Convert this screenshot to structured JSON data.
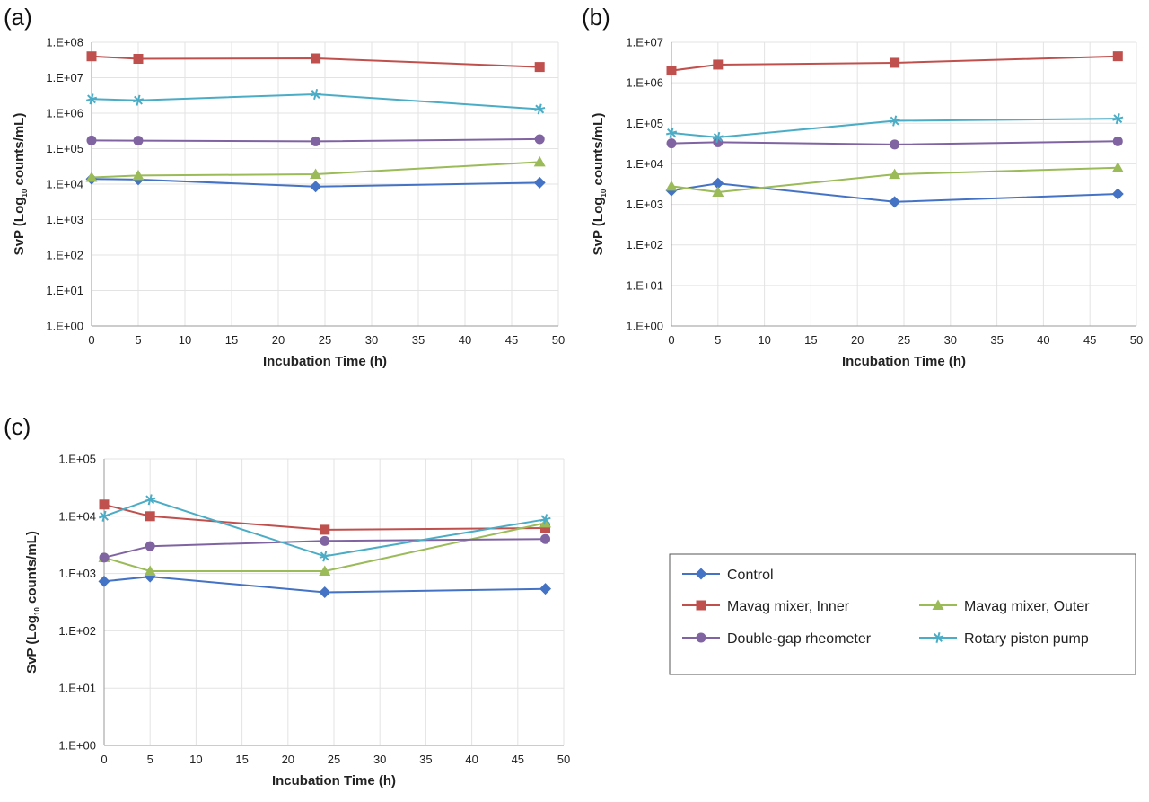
{
  "chart_data": [
    {
      "type": "line",
      "panel_label": "(a)",
      "xlabel": "Incubation Time (h)",
      "ylabel": {
        "prefix": "SvP (Log",
        "sub": "10",
        "suffix": " counts/mL)"
      },
      "xlim": [
        0,
        50
      ],
      "xticks": [
        0,
        5,
        10,
        15,
        20,
        25,
        30,
        35,
        40,
        45,
        50
      ],
      "y_log_decades": [
        0,
        8
      ],
      "yticks": [
        "1.E+00",
        "1.E+01",
        "1.E+02",
        "1.E+03",
        "1.E+04",
        "1.E+05",
        "1.E+06",
        "1.E+07",
        "1.E+08"
      ],
      "x": [
        0,
        5,
        24,
        48
      ],
      "grid": true,
      "series": [
        {
          "name": "Control",
          "values": [
            14000,
            13500,
            8500,
            11000
          ]
        },
        {
          "name": "Mavag mixer, Inner",
          "values": [
            40000000,
            34000000,
            35000000,
            20000000
          ]
        },
        {
          "name": "Mavag mixer, Outer",
          "values": [
            15500,
            17500,
            19000,
            42000
          ]
        },
        {
          "name": "Double-gap rheometer",
          "values": [
            170000,
            168000,
            160000,
            185000
          ]
        },
        {
          "name": "Rotary piston pump",
          "values": [
            2500000,
            2300000,
            3400000,
            1300000
          ]
        }
      ]
    },
    {
      "type": "line",
      "panel_label": "(b)",
      "xlabel": "Incubation Time (h)",
      "ylabel": {
        "prefix": "SvP (Log",
        "sub": "10",
        "suffix": " counts/mL)"
      },
      "xlim": [
        0,
        50
      ],
      "xticks": [
        0,
        5,
        10,
        15,
        20,
        25,
        30,
        35,
        40,
        45,
        50
      ],
      "y_log_decades": [
        0,
        7
      ],
      "yticks": [
        "1.E+00",
        "1.E+01",
        "1.E+02",
        "1.E+03",
        "1.E+04",
        "1.E+05",
        "1.E+06",
        "1.E+07"
      ],
      "x": [
        0,
        5,
        24,
        48
      ],
      "grid": true,
      "series": [
        {
          "name": "Control",
          "values": [
            2200,
            3300,
            1150,
            1800
          ]
        },
        {
          "name": "Mavag mixer, Inner",
          "values": [
            2000000,
            2800000,
            3100000,
            4500000
          ]
        },
        {
          "name": "Mavag mixer, Outer",
          "values": [
            2800,
            2000,
            5500,
            8000
          ]
        },
        {
          "name": "Double-gap rheometer",
          "values": [
            32000,
            34000,
            30000,
            36000
          ]
        },
        {
          "name": "Rotary piston pump",
          "values": [
            58000,
            45000,
            115000,
            130000
          ]
        }
      ]
    },
    {
      "type": "line",
      "panel_label": "(c)",
      "xlabel": "Incubation Time (h)",
      "ylabel": {
        "prefix": "SvP (Log",
        "sub": "10",
        "suffix": " counts/mL)"
      },
      "xlim": [
        0,
        50
      ],
      "xticks": [
        0,
        5,
        10,
        15,
        20,
        25,
        30,
        35,
        40,
        45,
        50
      ],
      "y_log_decades": [
        0,
        5
      ],
      "yticks": [
        "1.E+00",
        "1.E+01",
        "1.E+02",
        "1.E+03",
        "1.E+04",
        "1.E+05"
      ],
      "x": [
        0,
        5,
        24,
        48
      ],
      "grid": true,
      "series": [
        {
          "name": "Control",
          "values": [
            730,
            880,
            470,
            540
          ]
        },
        {
          "name": "Mavag mixer, Inner",
          "values": [
            16000,
            10000,
            5800,
            6200
          ]
        },
        {
          "name": "Mavag mixer, Outer",
          "values": [
            1900,
            1100,
            1100,
            7600
          ]
        },
        {
          "name": "Double-gap rheometer",
          "values": [
            1900,
            3000,
            3700,
            4000
          ]
        },
        {
          "name": "Rotary piston pump",
          "values": [
            10000,
            19500,
            2000,
            8800
          ]
        }
      ]
    }
  ],
  "legend": {
    "placement": "right of panel (c)",
    "entries": [
      {
        "name": "Control",
        "color": "#4472C4",
        "marker": "diamond"
      },
      {
        "name": "Mavag mixer, Inner",
        "color": "#C0504D",
        "marker": "square"
      },
      {
        "name": "Mavag mixer, Outer",
        "color": "#9BBB59",
        "marker": "triangle"
      },
      {
        "name": "Double-gap rheometer",
        "color": "#8064A2",
        "marker": "circle"
      },
      {
        "name": "Rotary piston pump",
        "color": "#4BACC6",
        "marker": "star"
      }
    ]
  }
}
